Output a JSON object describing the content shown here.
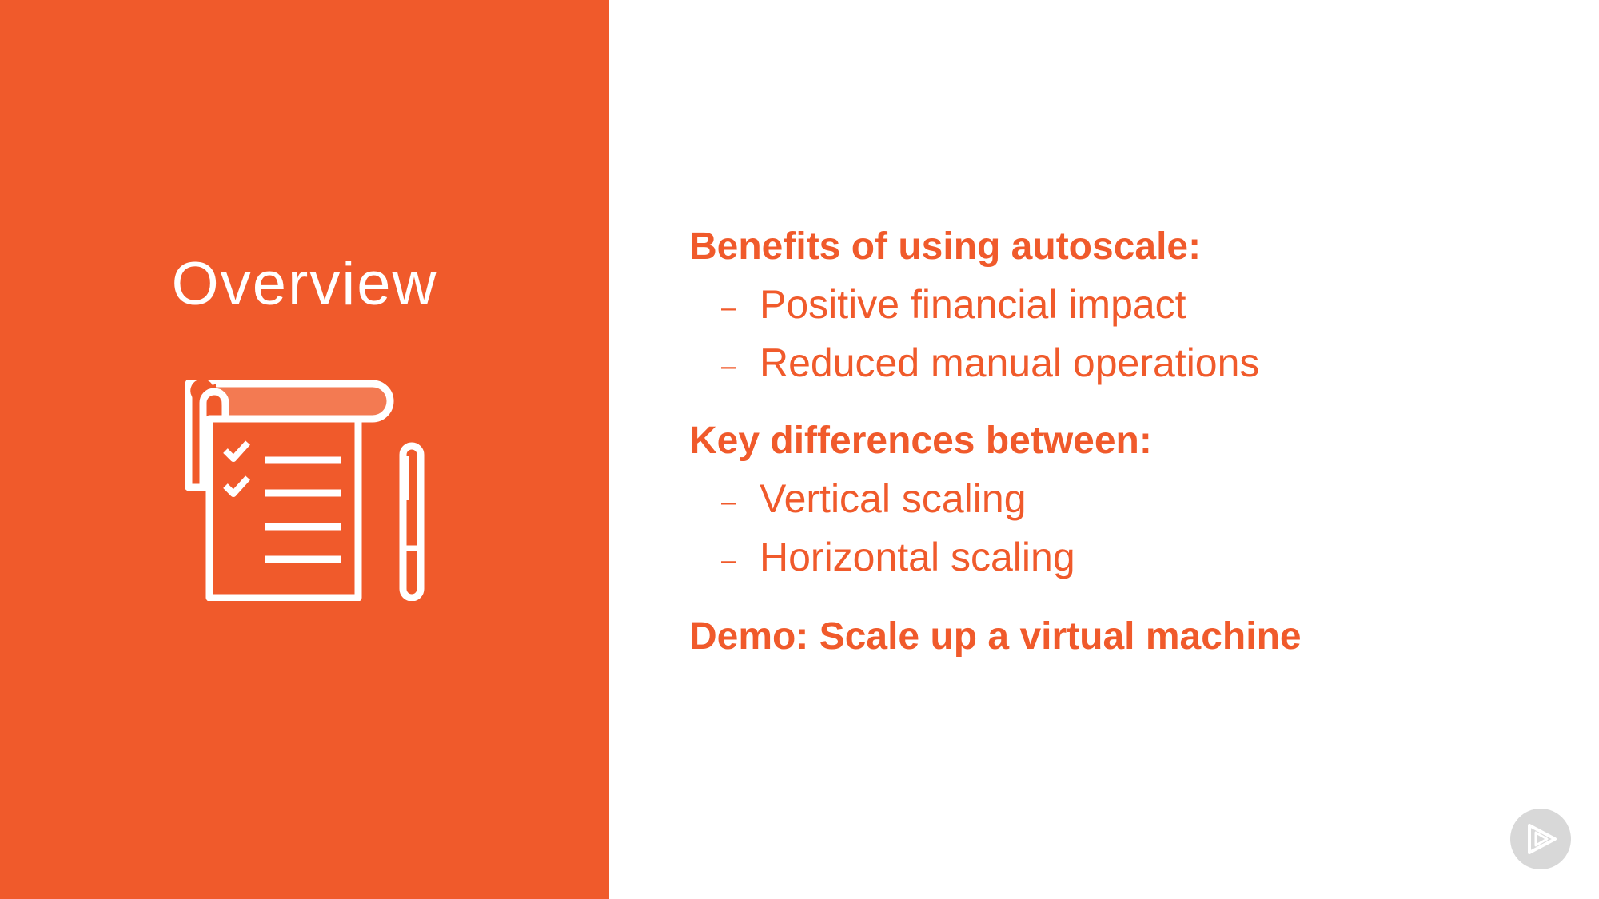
{
  "left_panel": {
    "title": "Overview",
    "icon": "checklist-notepad-and-pen-icon"
  },
  "content": {
    "sections": [
      {
        "heading": "Benefits of using autoscale:",
        "items": [
          "Positive financial impact",
          "Reduced manual operations"
        ]
      },
      {
        "heading": "Key differences between:",
        "items": [
          "Vertical scaling",
          "Horizontal scaling"
        ]
      },
      {
        "heading": "Demo: Scale up a virtual machine",
        "items": []
      }
    ],
    "bullet_dash": "–"
  },
  "badge": {
    "icon": "play-logo-icon"
  },
  "colors": {
    "accent": "#f05a2b",
    "white": "#ffffff",
    "badge_gray": "#d8d8d8"
  }
}
